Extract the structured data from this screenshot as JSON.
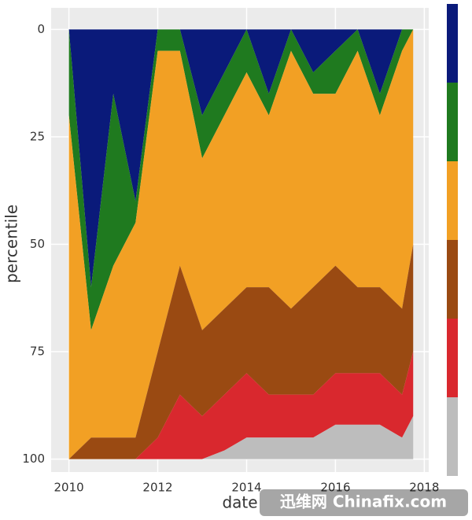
{
  "chart_data": {
    "type": "stacked-area",
    "x_label": "date",
    "y_label": "percentile",
    "x": [
      2010,
      2010.5,
      2011,
      2011.5,
      2012,
      2012.5,
      2013,
      2013.5,
      2014,
      2014.5,
      2015,
      2015.5,
      2016,
      2016.5,
      2017,
      2017.5,
      2017.75
    ],
    "series": [
      {
        "color": "#0a1a7a",
        "values": [
          0,
          60,
          15,
          40,
          0,
          0,
          20,
          10,
          0,
          15,
          0,
          10,
          5,
          0,
          15,
          0,
          0
        ]
      },
      {
        "color": "#1f7a1f",
        "values": [
          20,
          10,
          40,
          5,
          5,
          5,
          10,
          10,
          10,
          5,
          5,
          5,
          10,
          5,
          5,
          5,
          0
        ]
      },
      {
        "color": "#f2a024",
        "values": [
          80,
          25,
          40,
          50,
          70,
          50,
          40,
          45,
          50,
          40,
          60,
          45,
          40,
          55,
          40,
          60,
          50
        ]
      },
      {
        "color": "#9a4a12",
        "values": [
          0,
          5,
          5,
          5,
          20,
          30,
          20,
          20,
          20,
          25,
          20,
          25,
          25,
          20,
          20,
          20,
          25
        ]
      },
      {
        "color": "#d9282e",
        "values": [
          0,
          0,
          0,
          0,
          5,
          15,
          10,
          13,
          15,
          10,
          10,
          10,
          12,
          12,
          12,
          10,
          15
        ]
      },
      {
        "color": "#bdbdbd",
        "values": [
          0,
          0,
          0,
          0,
          0,
          0,
          0,
          2,
          5,
          5,
          5,
          5,
          8,
          8,
          8,
          5,
          10
        ]
      }
    ],
    "xlim": [
      2009.6,
      2018.1
    ],
    "xticks": [
      2010,
      2012,
      2014,
      2016,
      2018
    ],
    "ylim": [
      103,
      -5
    ],
    "yticks": [
      0,
      25,
      50,
      75,
      100
    ],
    "grid": true,
    "watermark": "迅维网 Chinafix.com"
  }
}
